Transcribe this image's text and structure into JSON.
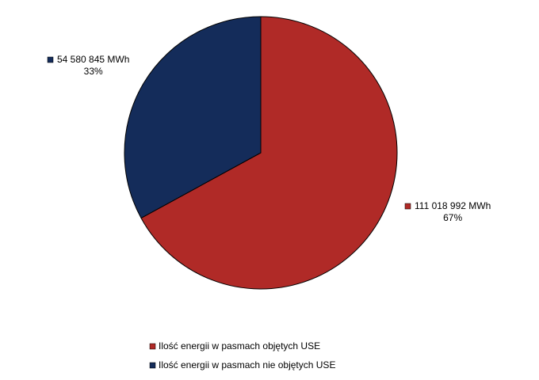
{
  "chart_data": {
    "type": "pie",
    "categories": [
      "Ilość energii w pasmach objętych USE",
      "Ilość energii w pasmach nie objętych USE"
    ],
    "values": [
      111018992,
      54580845
    ],
    "value_labels": [
      "111 018 992 MWh",
      "54 580 845 MWh"
    ],
    "percentages": [
      67,
      33
    ],
    "percentage_labels": [
      "67%",
      "33%"
    ],
    "colors": [
      "#b02a27",
      "#142c5a"
    ],
    "legend": "bottom"
  }
}
